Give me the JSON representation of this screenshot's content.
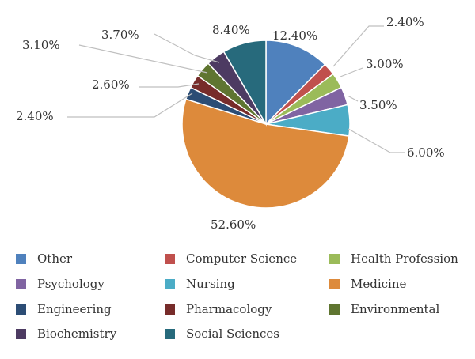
{
  "chart_data": {
    "type": "pie",
    "title": "",
    "slices": [
      {
        "name": "Other",
        "value": 12.4,
        "label": "12.40%",
        "color": "#4f81bd"
      },
      {
        "name": "Computer Science",
        "value": 2.4,
        "label": "2.40%",
        "color": "#c0504d"
      },
      {
        "name": "Health Profession",
        "value": 3.0,
        "label": "3.00%",
        "color": "#9bbb59"
      },
      {
        "name": "Psychology",
        "value": 3.5,
        "label": "3.50%",
        "color": "#8064a2"
      },
      {
        "name": "Nursing",
        "value": 6.0,
        "label": "6.00%",
        "color": "#4bacc6"
      },
      {
        "name": "Medicine",
        "value": 52.6,
        "label": "52.60%",
        "color": "#dd8a3b"
      },
      {
        "name": "Engineering",
        "value": 2.4,
        "label": "2.40%",
        "color": "#2c4d75"
      },
      {
        "name": "Pharmacology",
        "value": 2.6,
        "label": "2.60%",
        "color": "#772c2a"
      },
      {
        "name": "Environmental",
        "value": 3.1,
        "label": "3.10%",
        "color": "#5f7530"
      },
      {
        "name": "Biochemistry",
        "value": 3.7,
        "label": "3.70%",
        "color": "#4d3b62"
      },
      {
        "name": "Social Sciences",
        "value": 8.4,
        "label": "8.40%",
        "color": "#276a7c"
      }
    ],
    "legend_position": "bottom",
    "label_leader_lines": true
  }
}
